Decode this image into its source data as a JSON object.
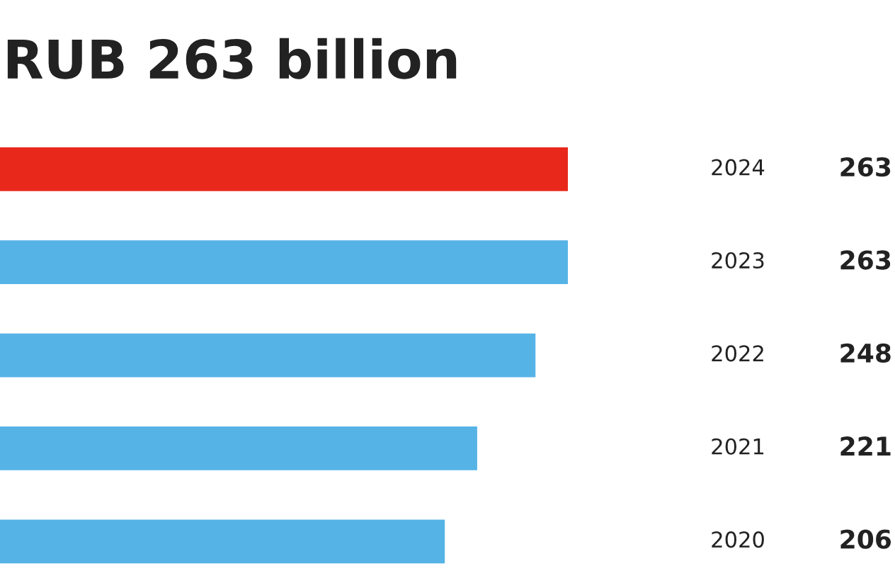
{
  "chart_data": {
    "type": "bar",
    "orientation": "horizontal",
    "title": "RUB 263 billion",
    "categories": [
      "2024",
      "2023",
      "2022",
      "2021",
      "2020"
    ],
    "values": [
      263,
      263,
      248,
      221,
      206
    ],
    "colors": [
      "#e8281b",
      "#56b3e6",
      "#56b3e6",
      "#56b3e6",
      "#56b3e6"
    ],
    "data_labels": true
  }
}
